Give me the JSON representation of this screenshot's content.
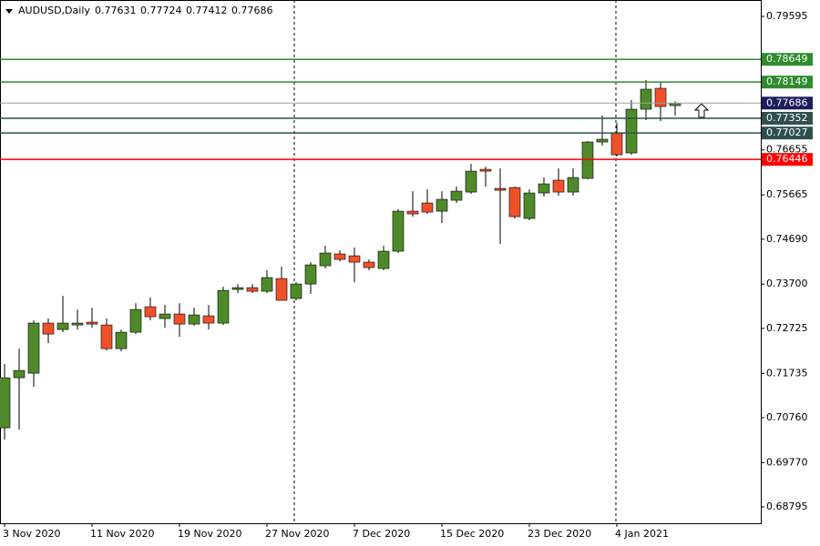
{
  "chart_data": {
    "type": "candlestick",
    "title": "AUDUSD,Daily",
    "categories": [
      "3 Nov 2020",
      null,
      null,
      null,
      null,
      null,
      "11 Nov 2020",
      null,
      null,
      null,
      null,
      null,
      "19 Nov 2020",
      null,
      null,
      null,
      null,
      null,
      "27 Nov 2020",
      null,
      null,
      null,
      null,
      null,
      "7 Dec 2020",
      null,
      null,
      null,
      null,
      null,
      "15 Dec 2020",
      null,
      null,
      null,
      null,
      null,
      "23 Dec 2020",
      null,
      null,
      null,
      null,
      null,
      "4 Jan 2021",
      null,
      null,
      null,
      null
    ],
    "open": [
      0.70537,
      0.71639,
      0.71739,
      0.72842,
      0.72701,
      0.72801,
      0.72862,
      0.72801,
      0.7228,
      0.72641,
      0.73202,
      0.72942,
      0.73042,
      0.72821,
      0.73002,
      0.72842,
      0.73583,
      0.73623,
      0.73543,
      0.73823,
      0.73383,
      0.73703,
      0.74104,
      0.74365,
      0.74324,
      0.74184,
      0.74044,
      0.74425,
      0.75306,
      0.75487,
      0.75306,
      0.75547,
      0.75727,
      0.76228,
      0.75807,
      0.75827,
      0.75146,
      0.75707,
      0.75988,
      0.75727,
      0.76028,
      0.76829,
      0.7703,
      0.76589,
      0.77551,
      0.78012,
      0.77631
    ],
    "high": [
      0.7194,
      0.7228,
      0.72902,
      0.72942,
      0.73443,
      0.73142,
      0.73182,
      0.72942,
      0.72701,
      0.73282,
      0.73403,
      0.73242,
      0.73282,
      0.73182,
      0.73242,
      0.73643,
      0.73703,
      0.73703,
      0.74004,
      0.74084,
      0.73743,
      0.74184,
      0.74545,
      0.74445,
      0.74505,
      0.74244,
      0.74545,
      0.75347,
      0.75747,
      0.75787,
      0.75747,
      0.75848,
      0.76349,
      0.76288,
      0.76248,
      0.75848,
      0.75787,
      0.76048,
      0.76248,
      0.76248,
      0.7685,
      0.77411,
      0.7725,
      0.77751,
      0.78192,
      0.78152,
      0.77724
    ],
    "low": [
      0.70276,
      0.70497,
      0.71439,
      0.72401,
      0.72641,
      0.72701,
      0.72741,
      0.7224,
      0.7222,
      0.72601,
      0.72902,
      0.72741,
      0.72541,
      0.72781,
      0.72701,
      0.72801,
      0.73503,
      0.73503,
      0.73503,
      0.73343,
      0.73343,
      0.73483,
      0.74044,
      0.74204,
      0.73743,
      0.74004,
      0.74004,
      0.74385,
      0.75186,
      0.75246,
      0.75046,
      0.75487,
      0.75687,
      0.75848,
      0.74585,
      0.75146,
      0.75106,
      0.75627,
      0.75647,
      0.75647,
      0.76008,
      0.76749,
      0.76509,
      0.76549,
      0.7731,
      0.7729,
      0.77412
    ],
    "close": [
      0.71639,
      0.71799,
      0.72842,
      0.72601,
      0.72842,
      0.72842,
      0.72821,
      0.7228,
      0.72641,
      0.73142,
      0.72982,
      0.73042,
      0.72821,
      0.73022,
      0.72842,
      0.73563,
      0.73623,
      0.73543,
      0.73844,
      0.73343,
      0.73703,
      0.74124,
      0.74385,
      0.74244,
      0.74184,
      0.74064,
      0.74425,
      0.75306,
      0.75246,
      0.75286,
      0.75567,
      0.75747,
      0.76188,
      0.76188,
      0.75767,
      0.75186,
      0.75707,
      0.75908,
      0.75727,
      0.76048,
      0.76829,
      0.7689,
      0.76549,
      0.77551,
      0.77992,
      0.77611,
      0.77686
    ],
    "up_color": "#4f8a2a",
    "down_color": "#f0502a",
    "ylim": [
      0.68435,
      0.79956
    ],
    "yticks": [
      0.79595,
      0.76655,
      0.75665,
      {
        "value": 0.7469,
        "label": "0.74690"
      },
      {
        "value": 0.737,
        "label": "0.73700"
      },
      0.72725,
      0.71735,
      {
        "value": 0.7076,
        "label": "0.70760"
      },
      {
        "value": 0.6977,
        "label": "0.69770"
      },
      0.68795
    ],
    "levels": [
      {
        "value": 0.78649,
        "color": "#2e8b2e"
      },
      {
        "value": 0.78149,
        "color": "#2e8b2e"
      },
      {
        "value": 0.77686,
        "color": "#1c1c5e"
      },
      {
        "value": 0.77352,
        "color": "#2f4f4f"
      },
      {
        "value": 0.77027,
        "color": "#2f4f4f"
      },
      {
        "value": 0.76446,
        "color": "#ff0000"
      }
    ]
  }
}
